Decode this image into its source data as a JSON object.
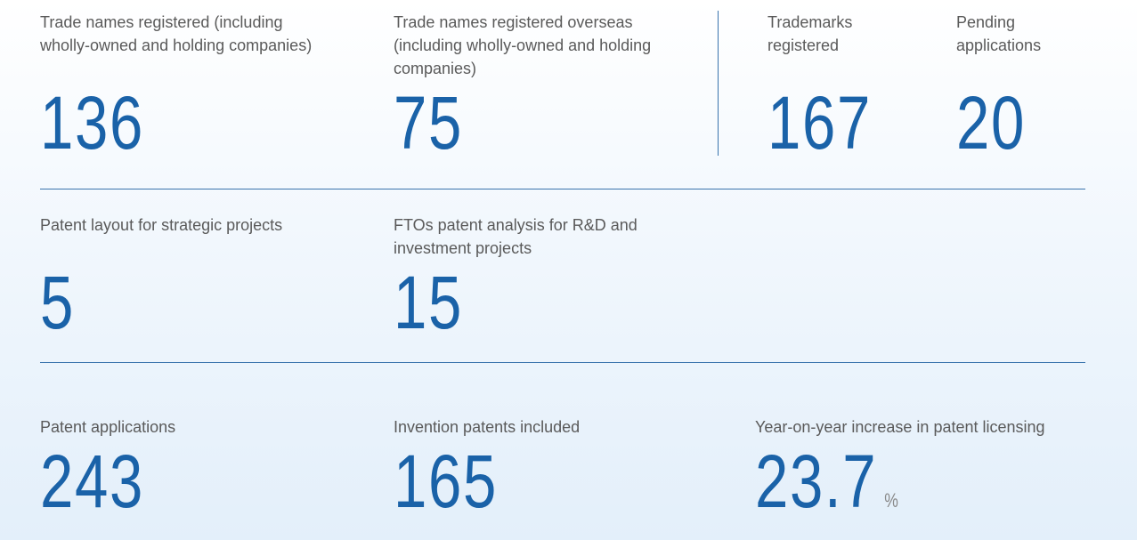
{
  "rows": [
    {
      "items": [
        {
          "label": "Trade names registered (including wholly-owned and holding companies)",
          "value": 136
        },
        {
          "label": "Trade names registered overseas (including wholly-owned and holding companies)",
          "value": 75
        },
        {
          "label": "Trademarks registered",
          "value": 167
        },
        {
          "label": "Pending applications",
          "value": 20
        }
      ]
    },
    {
      "items": [
        {
          "label": "Patent layout for strategic projects",
          "value": 5
        },
        {
          "label": "FTOs patent analysis for R&D and investment projects",
          "value": 15
        }
      ]
    },
    {
      "items": [
        {
          "label": "Patent applications",
          "value": 243
        },
        {
          "label": "Invention patents included",
          "value": 165
        },
        {
          "label": "Year-on-year increase in patent licensing",
          "value": 23.7,
          "unit": "%"
        }
      ]
    }
  ]
}
